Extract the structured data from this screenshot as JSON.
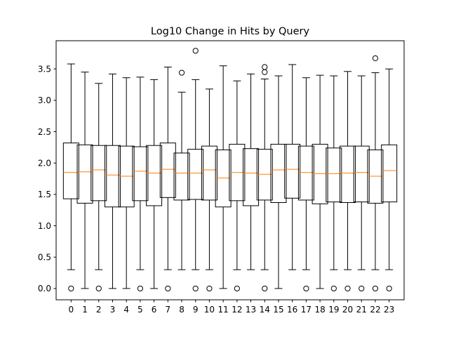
{
  "chart_data": {
    "type": "box",
    "title": "Log10 Change in Hits by Query",
    "xlabel": "",
    "ylabel": "",
    "categories": [
      "0",
      "1",
      "2",
      "3",
      "4",
      "5",
      "6",
      "7",
      "8",
      "9",
      "10",
      "11",
      "12",
      "13",
      "14",
      "15",
      "16",
      "17",
      "18",
      "19",
      "20",
      "21",
      "22",
      "23"
    ],
    "yticks": [
      "0.0",
      "0.5",
      "1.0",
      "1.5",
      "2.0",
      "2.5",
      "3.0",
      "3.5"
    ],
    "ylim": [
      -0.18,
      3.95
    ],
    "grid": false,
    "colors": {
      "box": "#000000",
      "median": "#ff7f0e",
      "flier": "#000000"
    },
    "boxes": [
      {
        "whislo": 0.3,
        "q1": 1.43,
        "med": 1.85,
        "q3": 2.32,
        "whishi": 3.58,
        "fliers": [
          0.0
        ]
      },
      {
        "whislo": 0.0,
        "q1": 1.36,
        "med": 1.86,
        "q3": 2.29,
        "whishi": 3.45,
        "fliers": []
      },
      {
        "whislo": 0.3,
        "q1": 1.4,
        "med": 1.89,
        "q3": 2.28,
        "whishi": 3.27,
        "fliers": [
          0.0
        ]
      },
      {
        "whislo": 0.0,
        "q1": 1.3,
        "med": 1.81,
        "q3": 2.28,
        "whishi": 3.42,
        "fliers": []
      },
      {
        "whislo": 0.0,
        "q1": 1.3,
        "med": 1.79,
        "q3": 2.27,
        "whishi": 3.36,
        "fliers": []
      },
      {
        "whislo": 0.3,
        "q1": 1.4,
        "med": 1.87,
        "q3": 2.26,
        "whishi": 3.37,
        "fliers": [
          0.0
        ]
      },
      {
        "whislo": 0.0,
        "q1": 1.32,
        "med": 1.84,
        "q3": 2.28,
        "whishi": 3.33,
        "fliers": []
      },
      {
        "whislo": 0.3,
        "q1": 1.45,
        "med": 1.9,
        "q3": 2.32,
        "whishi": 3.53,
        "fliers": [
          0.0
        ]
      },
      {
        "whislo": 0.3,
        "q1": 1.41,
        "med": 1.84,
        "q3": 2.16,
        "whishi": 3.13,
        "fliers": [
          3.44
        ]
      },
      {
        "whislo": 0.3,
        "q1": 1.42,
        "med": 1.84,
        "q3": 2.22,
        "whishi": 3.33,
        "fliers": [
          0.0,
          3.79
        ]
      },
      {
        "whislo": 0.3,
        "q1": 1.41,
        "med": 1.89,
        "q3": 2.27,
        "whishi": 3.18,
        "fliers": [
          0.0
        ]
      },
      {
        "whislo": 0.0,
        "q1": 1.3,
        "med": 1.76,
        "q3": 2.21,
        "whishi": 3.55,
        "fliers": []
      },
      {
        "whislo": 0.3,
        "q1": 1.4,
        "med": 1.85,
        "q3": 2.3,
        "whishi": 3.31,
        "fliers": [
          0.0
        ]
      },
      {
        "whislo": 0.3,
        "q1": 1.32,
        "med": 1.84,
        "q3": 2.23,
        "whishi": 3.42,
        "fliers": []
      },
      {
        "whislo": 0.3,
        "q1": 1.41,
        "med": 1.82,
        "q3": 2.22,
        "whishi": 3.34,
        "fliers": [
          0.0,
          3.45,
          3.53
        ]
      },
      {
        "whislo": 0.0,
        "q1": 1.37,
        "med": 1.89,
        "q3": 2.3,
        "whishi": 3.39,
        "fliers": []
      },
      {
        "whislo": 0.3,
        "q1": 1.44,
        "med": 1.9,
        "q3": 2.3,
        "whishi": 3.57,
        "fliers": []
      },
      {
        "whislo": 0.3,
        "q1": 1.41,
        "med": 1.85,
        "q3": 2.27,
        "whishi": 3.36,
        "fliers": [
          0.0
        ]
      },
      {
        "whislo": 0.0,
        "q1": 1.35,
        "med": 1.83,
        "q3": 2.3,
        "whishi": 3.4,
        "fliers": []
      },
      {
        "whislo": 0.3,
        "q1": 1.38,
        "med": 1.83,
        "q3": 2.24,
        "whishi": 3.39,
        "fliers": [
          0.0
        ]
      },
      {
        "whislo": 0.3,
        "q1": 1.37,
        "med": 1.84,
        "q3": 2.27,
        "whishi": 3.46,
        "fliers": [
          0.0
        ]
      },
      {
        "whislo": 0.3,
        "q1": 1.38,
        "med": 1.85,
        "q3": 2.27,
        "whishi": 3.39,
        "fliers": [
          0.0
        ]
      },
      {
        "whislo": 0.3,
        "q1": 1.36,
        "med": 1.79,
        "q3": 2.21,
        "whishi": 3.44,
        "fliers": [
          0.0,
          3.67
        ]
      },
      {
        "whislo": 0.3,
        "q1": 1.38,
        "med": 1.88,
        "q3": 2.29,
        "whishi": 3.5,
        "fliers": [
          0.0
        ]
      }
    ]
  }
}
